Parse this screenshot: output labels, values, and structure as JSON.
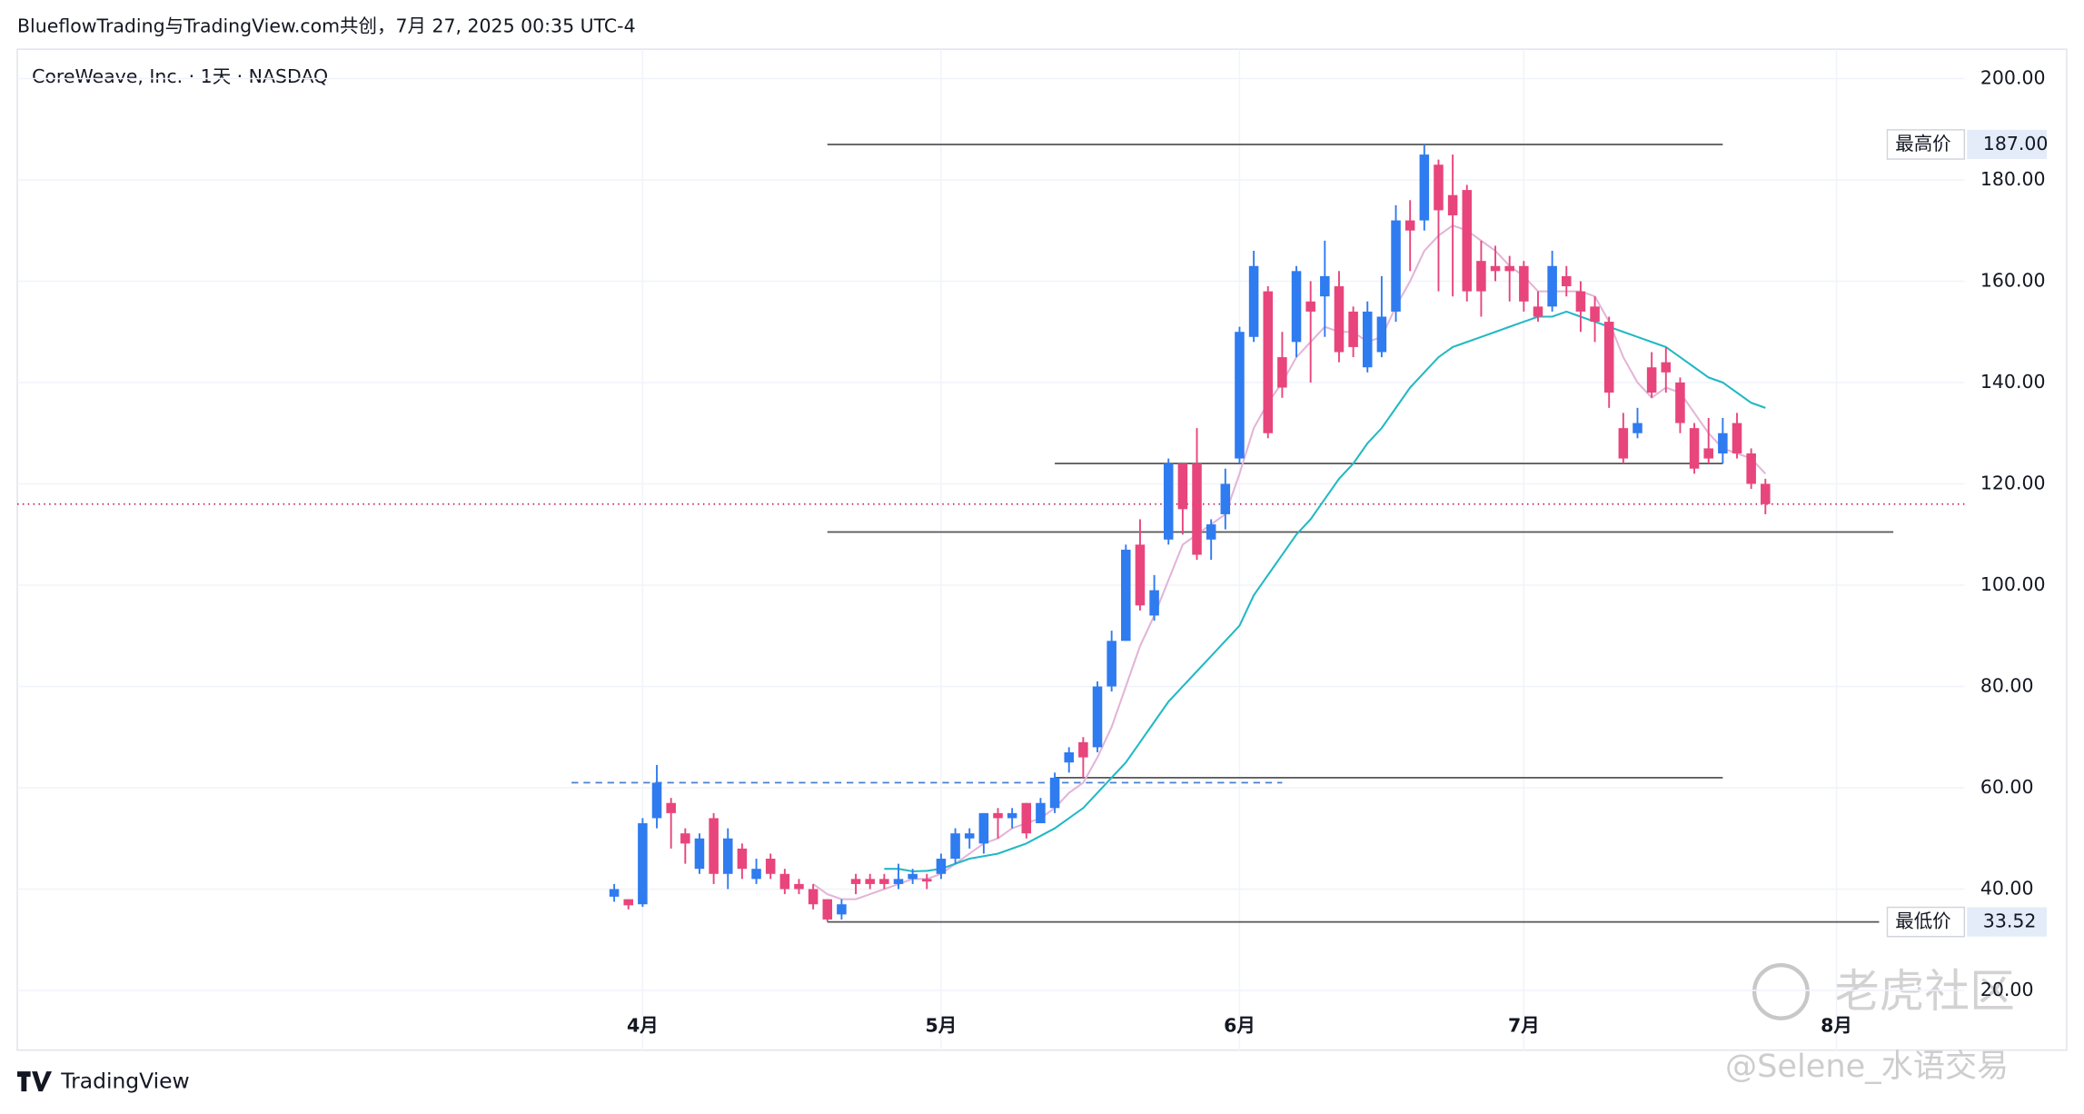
{
  "chart_data": {
    "type": "candlestick",
    "header": "BlueflowTrading与TradingView.com共创，7月 27, 2025 00:35 UTC-4",
    "title": "CoreWeave, Inc. · 1天 · NASDAQ",
    "brand": "TradingView",
    "watermarks": [
      "老虎社区",
      "@Selene_水语交易"
    ],
    "up_color": "#2f7bf0",
    "down_color": "#e8457c",
    "xlim": [
      -42,
      95
    ],
    "xticks": [
      {
        "value": 2,
        "label": "4月"
      },
      {
        "value": 23,
        "label": "5月"
      },
      {
        "value": 44,
        "label": "6月"
      },
      {
        "value": 64,
        "label": "7月"
      },
      {
        "value": 86,
        "label": "8月"
      }
    ],
    "ylim": [
      8.2,
      205.8
    ],
    "yticks": [
      {
        "value": 20,
        "label": "20.00"
      },
      {
        "value": 40,
        "label": "40.00"
      },
      {
        "value": 60,
        "label": "60.00"
      },
      {
        "value": 80,
        "label": "80.00"
      },
      {
        "value": 100,
        "label": "100.00"
      },
      {
        "value": 120,
        "label": "120.00"
      },
      {
        "value": 140,
        "label": "140.00"
      },
      {
        "value": 160,
        "label": "160.00"
      },
      {
        "value": 180,
        "label": "180.00"
      },
      {
        "value": 200,
        "label": "200.00"
      }
    ],
    "grid": true,
    "open": [
      38.5,
      38,
      37,
      54,
      57,
      51,
      44,
      54,
      43,
      48,
      42,
      46,
      43,
      41,
      40,
      38,
      35,
      42,
      42,
      42,
      41,
      42,
      42,
      43,
      46,
      50,
      49,
      55,
      54,
      57,
      53,
      56,
      65,
      69,
      68,
      80,
      89,
      108,
      94,
      109,
      124,
      124,
      109,
      114,
      125,
      149,
      158,
      145,
      148,
      156,
      157,
      159,
      154,
      143,
      146,
      154,
      172,
      172,
      183,
      177,
      178,
      164,
      163,
      163,
      163,
      155,
      155,
      161,
      158,
      155,
      152,
      131,
      130,
      143,
      144,
      140,
      131,
      127,
      126,
      132,
      126,
      120
    ],
    "high": [
      41,
      38,
      54,
      64.5,
      58,
      52,
      51,
      55,
      52,
      49,
      46,
      47,
      44,
      42,
      41,
      38,
      38,
      43,
      43,
      43,
      45,
      44,
      43,
      47,
      52,
      52,
      55,
      56,
      56,
      57,
      58,
      63,
      68,
      70,
      81,
      91,
      108,
      113,
      102,
      125,
      124,
      131,
      113,
      123,
      151,
      166,
      159,
      150,
      163,
      160,
      168,
      162,
      155,
      156,
      161,
      175,
      176,
      187,
      184,
      185,
      179,
      168,
      167,
      165,
      164,
      158,
      166,
      163,
      160,
      157,
      153,
      134,
      135,
      146,
      147,
      141,
      132,
      133,
      133,
      134,
      127,
      121
    ],
    "low": [
      37.5,
      36,
      36.5,
      52,
      48,
      45,
      43,
      41,
      40,
      42,
      41,
      42,
      39,
      39,
      36,
      33.52,
      34,
      39,
      40,
      40,
      40,
      41,
      40,
      42,
      45,
      48,
      47,
      50,
      52,
      50,
      53,
      55,
      63,
      62,
      67,
      79,
      89,
      95,
      93,
      108,
      110,
      105,
      105,
      111,
      124,
      148,
      129,
      137,
      145,
      140,
      149,
      144,
      145,
      142,
      145,
      152,
      162,
      170,
      158,
      157,
      156,
      153,
      160,
      156,
      154,
      152,
      154,
      157,
      150,
      148,
      135,
      124,
      129,
      137,
      138,
      130,
      122,
      124,
      124,
      125,
      119,
      114
    ],
    "close": [
      40,
      36.8,
      53,
      61,
      55,
      49,
      50,
      43,
      50,
      44,
      44,
      43,
      40,
      40,
      37,
      34,
      37,
      41,
      41,
      41,
      42,
      43,
      41.5,
      46,
      51,
      51,
      55,
      54,
      55,
      51,
      57,
      62,
      67,
      66,
      80,
      89,
      107,
      96,
      99,
      124,
      115,
      106,
      112,
      120,
      150,
      163,
      130,
      139,
      162,
      154,
      161,
      146,
      147,
      154,
      153,
      172,
      170,
      185,
      174,
      173,
      158,
      158,
      162,
      162,
      156,
      153,
      163,
      159,
      154,
      152,
      138,
      125,
      132,
      138,
      142,
      132,
      123,
      125,
      130,
      126,
      120,
      116
    ],
    "lines": [
      {
        "color": "#e3b4d8",
        "values": [
          null,
          null,
          null,
          null,
          null,
          null,
          null,
          null,
          null,
          null,
          null,
          null,
          null,
          null,
          41,
          39,
          38,
          38,
          39,
          40,
          41,
          42,
          42,
          43,
          45,
          47,
          49,
          50,
          52,
          53,
          54,
          56,
          59,
          61,
          66,
          72,
          80,
          88,
          94,
          101,
          108,
          110,
          112,
          114,
          122,
          131,
          136,
          140,
          145,
          148,
          151,
          150,
          150,
          148,
          149,
          155,
          160,
          166,
          169,
          171,
          170,
          168,
          166,
          163,
          161,
          158,
          158,
          158,
          158,
          157,
          152,
          145,
          140,
          137,
          139,
          138,
          134,
          130,
          127,
          126,
          125,
          122
        ]
      },
      {
        "color": "#22b8c4",
        "values": [
          null,
          null,
          null,
          null,
          null,
          null,
          null,
          null,
          null,
          null,
          null,
          null,
          null,
          null,
          null,
          null,
          null,
          null,
          null,
          44,
          44,
          43.5,
          43.6,
          44,
          45,
          46,
          46.5,
          47,
          48,
          49,
          50.5,
          52,
          54,
          56,
          59,
          62,
          65,
          69,
          73,
          77,
          80,
          83,
          86,
          89,
          92,
          98,
          102,
          106,
          110,
          113,
          117,
          121,
          124,
          128,
          131,
          135,
          139,
          142,
          145,
          147,
          148,
          149,
          150,
          151,
          152,
          153,
          153,
          154,
          153,
          152,
          151,
          150,
          149,
          148,
          147,
          145,
          143,
          141,
          140,
          138,
          136,
          135
        ]
      }
    ],
    "hlines": [
      {
        "value": 187,
        "x": [
          15,
          78
        ],
        "color": "#555555",
        "label": "最高价",
        "value_label": "187.00"
      },
      {
        "value": 124,
        "x": [
          31,
          78
        ],
        "color": "#555555"
      },
      {
        "value": 110.5,
        "x": [
          15,
          90
        ],
        "color": "#555555"
      },
      {
        "value": 62,
        "x": [
          31,
          78
        ],
        "color": "#555555"
      },
      {
        "value": 61,
        "x": [
          -3,
          47
        ],
        "color": "#4a7fd0",
        "dash": "5,4"
      },
      {
        "value": 116,
        "color": "#c2185b",
        "dash": "1,3"
      },
      {
        "value": 33.52,
        "x": [
          15,
          89
        ],
        "color": "#555555",
        "label": "最低价",
        "value_label": "33.52"
      }
    ]
  }
}
